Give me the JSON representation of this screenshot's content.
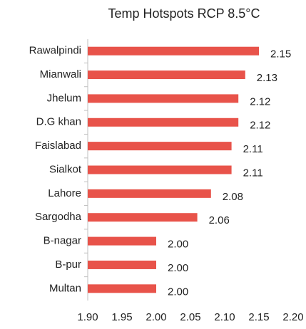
{
  "chart_data": {
    "type": "hbar",
    "title": "Temp Hotspots RCP 8.5°C",
    "categories": [
      "Rawalpindi",
      "Mianwali",
      "Jhelum",
      "D.G khan",
      "Faislabad",
      "Sialkot",
      "Lahore",
      "Sargodha",
      "B-nagar",
      "B-pur",
      "Multan"
    ],
    "values": [
      2.15,
      2.13,
      2.12,
      2.12,
      2.11,
      2.11,
      2.08,
      2.06,
      2.0,
      2.0,
      2.0
    ],
    "value_labels": [
      "2.15",
      "2.13",
      "2.12",
      "2.12",
      "2.11",
      "2.11",
      "2.08",
      "2.06",
      "2.00",
      "2.00",
      "2.00"
    ],
    "color": "#e8534a",
    "xlim": [
      1.9,
      2.2
    ],
    "xticks": [
      {
        "value": 1.9,
        "label": "1.90"
      },
      1.95,
      {
        "value": 2.0,
        "label": "2.00"
      },
      2.05,
      {
        "value": 2.1,
        "label": "2.10"
      },
      2.15,
      {
        "value": 2.2,
        "label": "2.20"
      }
    ]
  }
}
